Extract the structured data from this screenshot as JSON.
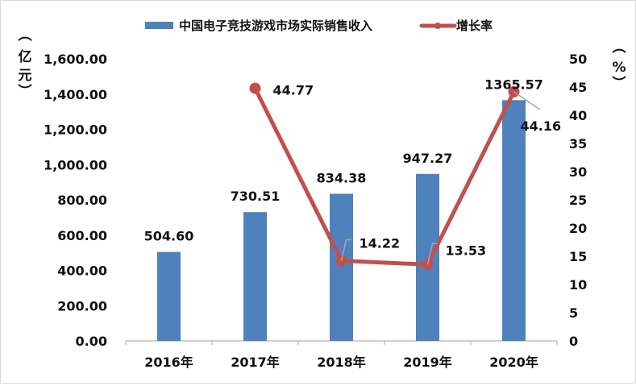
{
  "chart_data": {
    "type": "bar+line",
    "title": "",
    "categories": [
      "2016年",
      "2017年",
      "2018年",
      "2019年",
      "2020年"
    ],
    "series": [
      {
        "name": "中国电子竞技游戏市场实际销售收入",
        "type": "bar",
        "axis": "left",
        "color": "#4f81bd",
        "values": [
          504.6,
          730.51,
          834.38,
          947.27,
          1365.57
        ],
        "labels": [
          "504.60",
          "730.51",
          "834.38",
          "947.27",
          "1365.57"
        ]
      },
      {
        "name": "增长率",
        "type": "line",
        "axis": "right",
        "color": "#c0504d",
        "values": [
          null,
          44.77,
          14.22,
          13.53,
          44.16
        ],
        "labels": [
          "",
          "44.77",
          "14.22",
          "13.53",
          "44.16"
        ]
      }
    ],
    "ylabel": "（亿元）",
    "ylabel_right": "（%）",
    "ylim": [
      0,
      1600
    ],
    "ylim_right": [
      0,
      50
    ],
    "yticks": [
      "0.00",
      "200.00",
      "400.00",
      "600.00",
      "800.00",
      "1,000.00",
      "1,200.00",
      "1,400.00",
      "1,600.00"
    ],
    "yticks_right": [
      "0",
      "5",
      "10",
      "15",
      "20",
      "25",
      "30",
      "35",
      "40",
      "45",
      "50"
    ],
    "grid": false,
    "legend_position": "top"
  },
  "legend": {
    "bar_label": "中国电子竞技游戏市场实际销售收入",
    "line_label": "增长率"
  },
  "axis": {
    "left_title_chars": [
      "︵",
      "亿",
      "元",
      "︶"
    ],
    "right_title_chars": [
      "︵",
      "%",
      "︶"
    ]
  }
}
